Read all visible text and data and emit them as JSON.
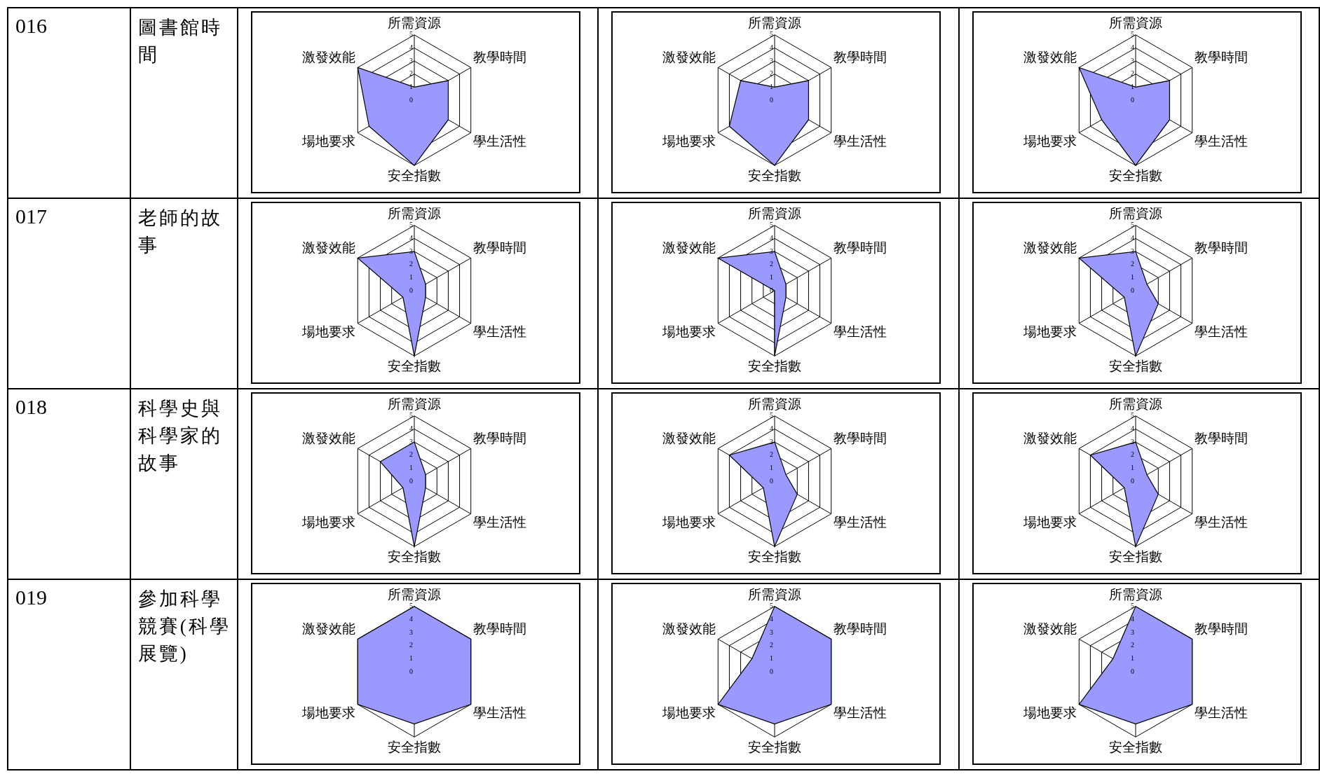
{
  "chart_data": [
    {
      "type": "radar",
      "annotations": [
        "016",
        "圖書館時間"
      ],
      "categories": [
        "所需資源",
        "教學時間",
        "學生活性",
        "安全指數",
        "場地要求",
        "激發效能"
      ],
      "series": [
        {
          "color": "#9999ff",
          "values": [
            1,
            3,
            3,
            5,
            4,
            5
          ]
        }
      ],
      "ylim": [
        0,
        5
      ],
      "yticks": [
        0,
        1,
        2,
        3,
        4,
        5
      ],
      "grid": true,
      "marker": "none"
    },
    {
      "type": "radar",
      "categories": [
        "所需資源",
        "教學時間",
        "學生活性",
        "安全指數",
        "場地要求",
        "激發效能"
      ],
      "series": [
        {
          "color": "#9999ff",
          "values": [
            1,
            3,
            3,
            5,
            4,
            3
          ]
        }
      ],
      "ylim": [
        0,
        5
      ],
      "yticks": [
        0,
        1,
        2,
        3,
        4,
        5
      ],
      "grid": true,
      "marker": "none"
    },
    {
      "type": "radar",
      "categories": [
        "所需資源",
        "教學時間",
        "學生活性",
        "安全指數",
        "場地要求",
        "激發效能"
      ],
      "series": [
        {
          "color": "#9999ff",
          "values": [
            1,
            3,
            3,
            5,
            3,
            5
          ]
        }
      ],
      "ylim": [
        0,
        5
      ],
      "yticks": [
        0,
        1,
        2,
        3,
        4,
        5
      ],
      "grid": true,
      "marker": "none"
    },
    {
      "type": "radar",
      "annotations": [
        "017",
        "老師的故事"
      ],
      "categories": [
        "所需資源",
        "教學時間",
        "學生活性",
        "安全指數",
        "場地要求",
        "激發效能"
      ],
      "series": [
        {
          "color": "#9999ff",
          "values": [
            3,
            1,
            1,
            5,
            1,
            5
          ]
        }
      ],
      "ylim": [
        0,
        5
      ],
      "yticks": [
        0,
        1,
        2,
        3,
        4,
        5
      ],
      "grid": true,
      "marker": "none"
    },
    {
      "type": "radar",
      "categories": [
        "所需資源",
        "教學時間",
        "學生活性",
        "安全指數",
        "場地要求",
        "激發效能"
      ],
      "series": [
        {
          "color": "#9999ff",
          "values": [
            3,
            1,
            1,
            5,
            0,
            5
          ]
        }
      ],
      "ylim": [
        0,
        5
      ],
      "yticks": [
        0,
        1,
        2,
        3,
        4,
        5
      ],
      "grid": true,
      "marker": "none"
    },
    {
      "type": "radar",
      "categories": [
        "所需資源",
        "教學時間",
        "學生活性",
        "安全指數",
        "場地要求",
        "激發效能"
      ],
      "series": [
        {
          "color": "#9999ff",
          "values": [
            3,
            1,
            2,
            5,
            1,
            5
          ]
        }
      ],
      "ylim": [
        0,
        5
      ],
      "yticks": [
        0,
        1,
        2,
        3,
        4,
        5
      ],
      "grid": true,
      "marker": "none"
    },
    {
      "type": "radar",
      "annotations": [
        "018",
        "科學史與科學家的故事"
      ],
      "categories": [
        "所需資源",
        "教學時間",
        "學生活性",
        "安全指數",
        "場地要求",
        "激發效能"
      ],
      "series": [
        {
          "color": "#9999ff",
          "values": [
            3,
            1,
            1,
            5,
            1,
            3
          ]
        }
      ],
      "ylim": [
        0,
        5
      ],
      "yticks": [
        0,
        1,
        2,
        3,
        4,
        5
      ],
      "grid": true,
      "marker": "none"
    },
    {
      "type": "radar",
      "categories": [
        "所需資源",
        "教學時間",
        "學生活性",
        "安全指數",
        "場地要求",
        "激發效能"
      ],
      "series": [
        {
          "color": "#9999ff",
          "values": [
            3,
            1,
            2,
            5,
            1,
            4
          ]
        }
      ],
      "ylim": [
        0,
        5
      ],
      "yticks": [
        0,
        1,
        2,
        3,
        4,
        5
      ],
      "grid": true,
      "marker": "none"
    },
    {
      "type": "radar",
      "categories": [
        "所需資源",
        "教學時間",
        "學生活性",
        "安全指數",
        "場地要求",
        "激發效能"
      ],
      "series": [
        {
          "color": "#9999ff",
          "values": [
            3,
            1,
            2,
            5,
            1,
            4
          ]
        }
      ],
      "ylim": [
        0,
        5
      ],
      "yticks": [
        0,
        1,
        2,
        3,
        4,
        5
      ],
      "grid": true,
      "marker": "none"
    },
    {
      "type": "radar",
      "annotations": [
        "019",
        "參加科學競賽(科學展覽)"
      ],
      "categories": [
        "所需資源",
        "教學時間",
        "學生活性",
        "安全指數",
        "場地要求",
        "激發效能"
      ],
      "series": [
        {
          "color": "#9999ff",
          "values": [
            5,
            5,
            5,
            4,
            5,
            5
          ]
        }
      ],
      "ylim": [
        0,
        5
      ],
      "yticks": [
        0,
        1,
        2,
        3,
        4,
        5
      ],
      "grid": true,
      "marker": "none"
    },
    {
      "type": "radar",
      "categories": [
        "所需資源",
        "教學時間",
        "學生活性",
        "安全指數",
        "場地要求",
        "激發效能"
      ],
      "series": [
        {
          "color": "#9999ff",
          "values": [
            5,
            5,
            5,
            4,
            5,
            2
          ]
        }
      ],
      "ylim": [
        0,
        5
      ],
      "yticks": [
        0,
        1,
        2,
        3,
        4,
        5
      ],
      "grid": true,
      "marker": "none"
    },
    {
      "type": "radar",
      "categories": [
        "所需資源",
        "教學時間",
        "學生活性",
        "安全指數",
        "場地要求",
        "激發效能"
      ],
      "series": [
        {
          "color": "#9999ff",
          "values": [
            5,
            5,
            5,
            4,
            5,
            2
          ]
        }
      ],
      "ylim": [
        0,
        5
      ],
      "yticks": [
        0,
        1,
        2,
        3,
        4,
        5
      ],
      "grid": true,
      "marker": "none"
    }
  ]
}
